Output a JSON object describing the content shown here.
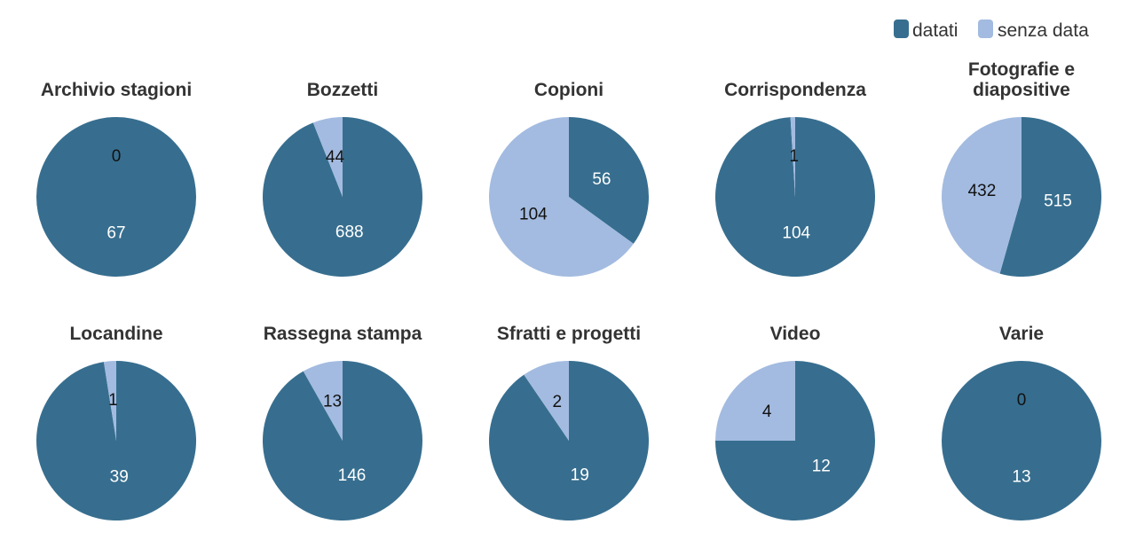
{
  "chart_data": {
    "type": "pie",
    "legend": {
      "position": "top-right",
      "entries": [
        {
          "name": "datati",
          "color": "#376e8f"
        },
        {
          "name": "senza data",
          "color": "#a3bbe0"
        }
      ]
    },
    "pies": [
      {
        "title": [
          "Archivio stagioni"
        ],
        "datati": 67,
        "senza_data": 0
      },
      {
        "title": [
          "Bozzetti"
        ],
        "datati": 688,
        "senza_data": 44
      },
      {
        "title": [
          "Copioni"
        ],
        "datati": 56,
        "senza_data": 104
      },
      {
        "title": [
          "Corrispondenza"
        ],
        "datati": 104,
        "senza_data": 1
      },
      {
        "title": [
          "Fotografie e",
          "diapositive"
        ],
        "datati": 515,
        "senza_data": 432
      },
      {
        "title": [
          "Locandine"
        ],
        "datati": 39,
        "senza_data": 1
      },
      {
        "title": [
          "Rassegna stampa"
        ],
        "datati": 146,
        "senza_data": 13
      },
      {
        "title": [
          "Sfratti e progetti"
        ],
        "datati": 19,
        "senza_data": 2
      },
      {
        "title": [
          "Video"
        ],
        "datati": 12,
        "senza_data": 4
      },
      {
        "title": [
          "Varie"
        ],
        "datati": 13,
        "senza_data": 0
      }
    ]
  }
}
